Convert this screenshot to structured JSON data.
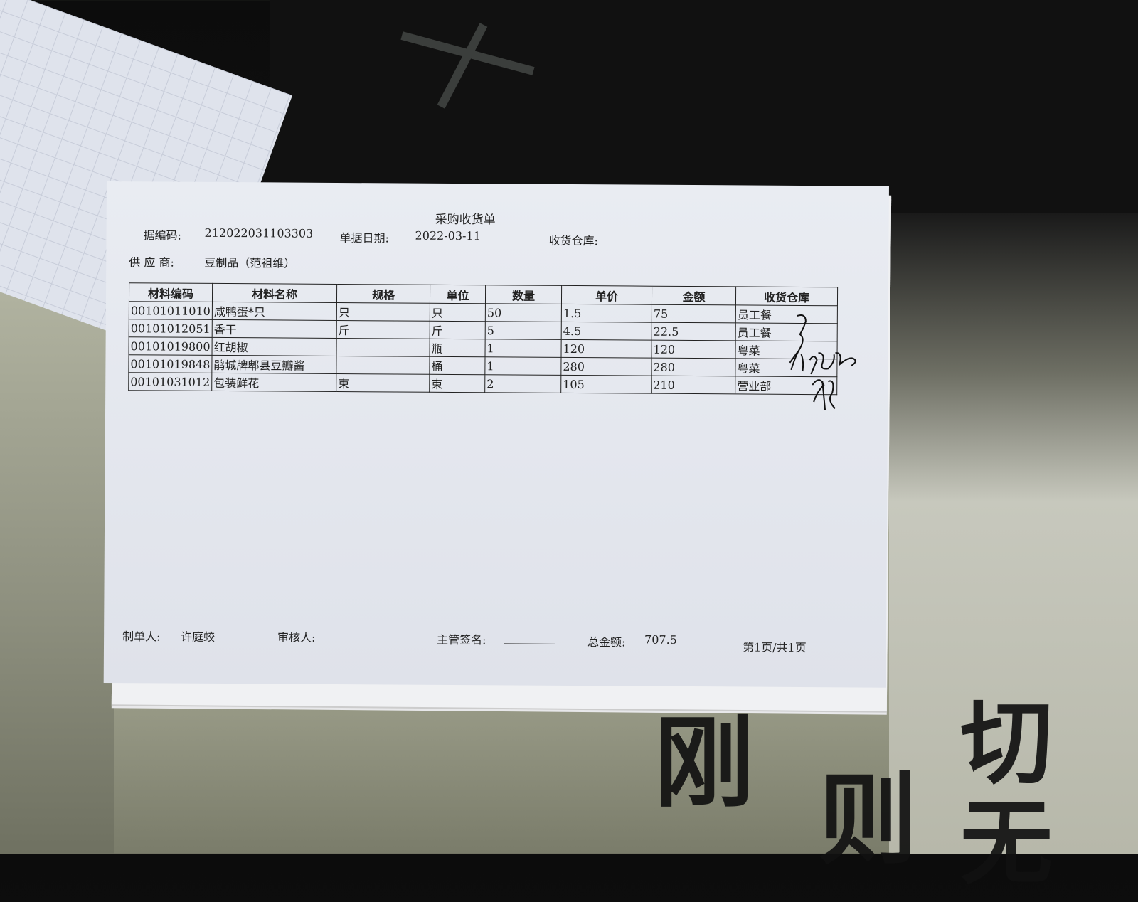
{
  "document": {
    "title": "采购收货单",
    "doc_number_label": "据编码:",
    "doc_number": "212022031103303",
    "doc_date_label": "单据日期:",
    "doc_date": "2022-03-11",
    "warehouse_label": "收货仓库:",
    "supplier_label": "供 应 商:",
    "supplier": "豆制品（范祖维）"
  },
  "table": {
    "headers": [
      "材料编码",
      "材料名称",
      "规格",
      "单位",
      "数量",
      "单价",
      "金额",
      "收货仓库"
    ],
    "rows": [
      [
        "00101011010",
        "咸鸭蛋*只",
        "只",
        "只",
        "50",
        "1.5",
        "75",
        "员工餐"
      ],
      [
        "00101012051",
        "香干",
        "斤",
        "斤",
        "5",
        "4.5",
        "22.5",
        "员工餐"
      ],
      [
        "00101019800",
        "红胡椒",
        "",
        "瓶",
        "1",
        "120",
        "120",
        "粤菜"
      ],
      [
        "00101019848",
        "鹃城牌郫县豆瓣酱",
        "",
        "桶",
        "1",
        "280",
        "280",
        "粤菜"
      ],
      [
        "00101031012",
        "包装鲜花",
        "束",
        "束",
        "2",
        "105",
        "210",
        "营业部"
      ]
    ]
  },
  "footer": {
    "preparer_label": "制单人:",
    "preparer": "许庭蛟",
    "reviewer_label": "审核人:",
    "supervisor_label": "主管签名:",
    "total_label": "总金额:",
    "total": "707.5",
    "page": "第1页/共1页"
  },
  "background_calligraphy": "刚 则 切 无"
}
